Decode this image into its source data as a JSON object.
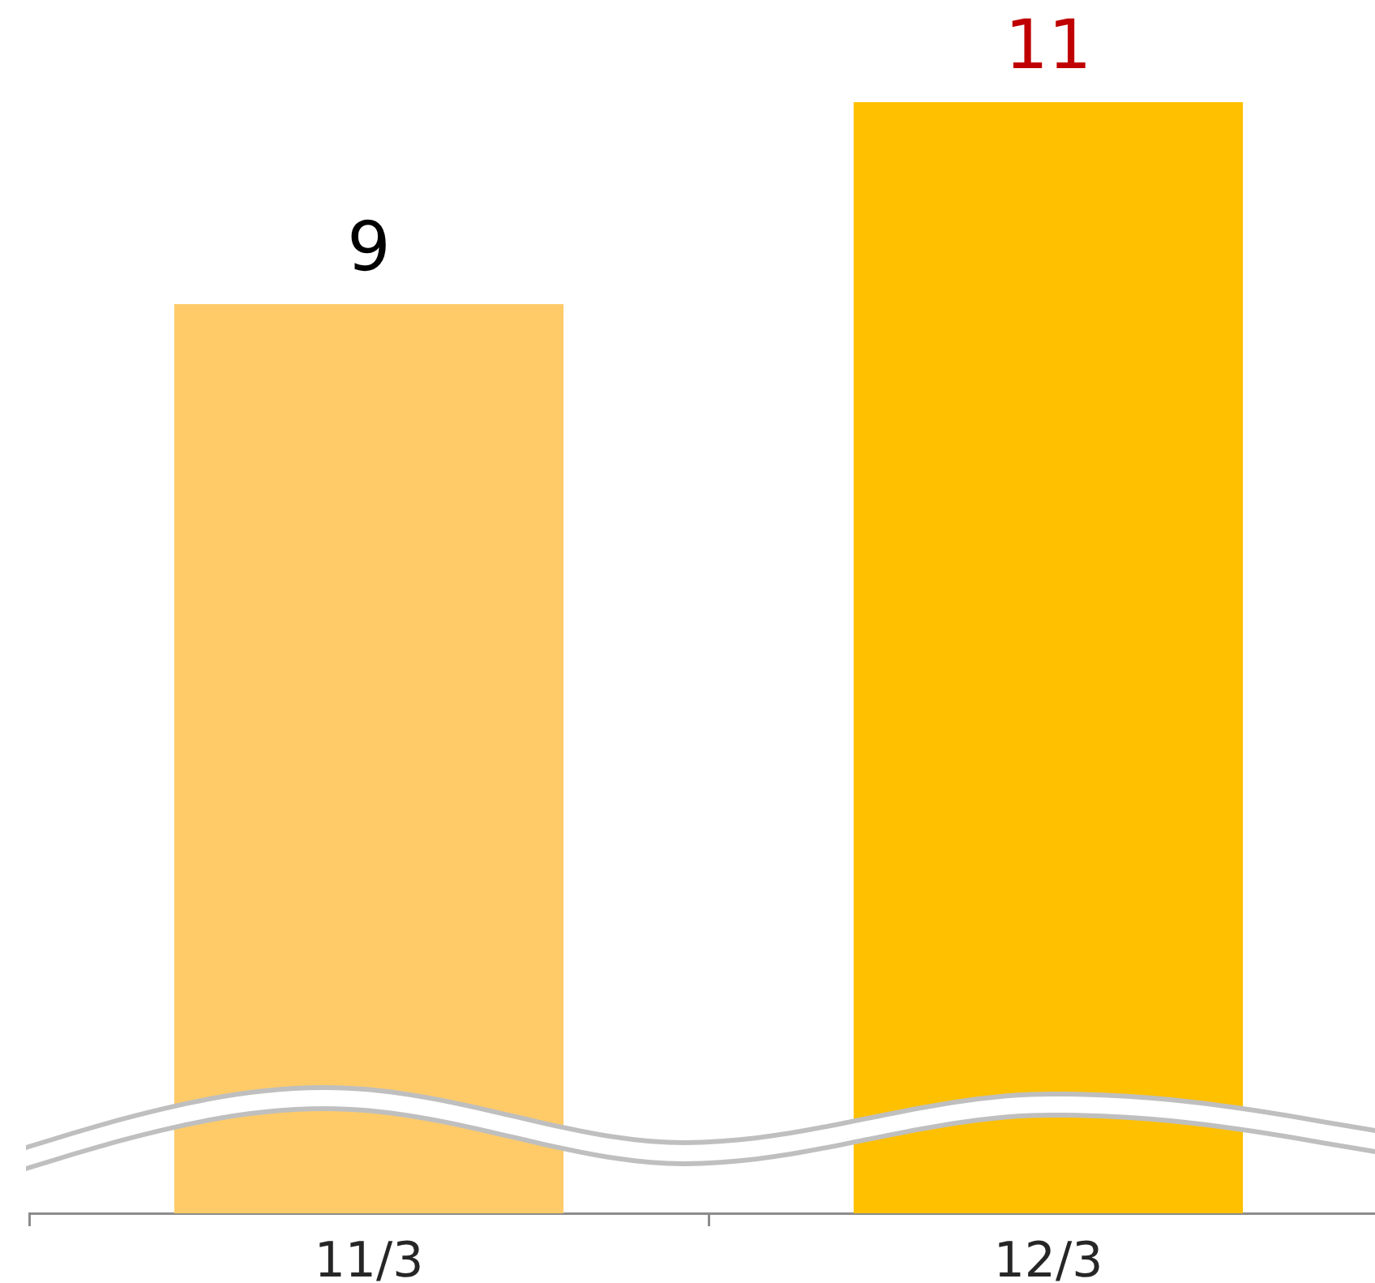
{
  "chart_data": {
    "type": "bar",
    "categories": [
      "11/3",
      "12/3"
    ],
    "values": [
      9,
      11
    ],
    "colors": [
      "#ffcb69",
      "#ffc000"
    ],
    "data_labels": true
  }
}
